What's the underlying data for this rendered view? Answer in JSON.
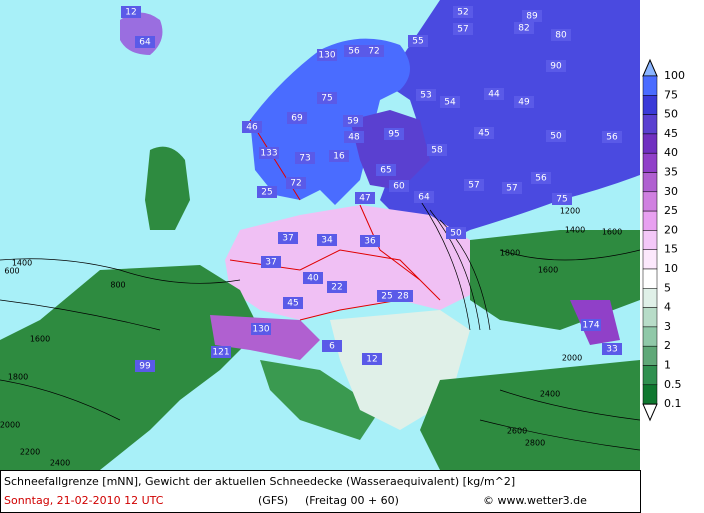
{
  "header": {
    "title": "Schneefallgrenze [mNN], Gewicht der aktuellen Schneedecke (Wasseraequivalent) [kg/m^2]",
    "date": "Sonntag, 21-02-2010  12 UTC",
    "model": "(GFS)",
    "run": "(Freitag 00 + 60)",
    "credit": "© www.wetter3.de"
  },
  "legend": {
    "levels": [
      100,
      75,
      50,
      45,
      40,
      35,
      30,
      25,
      20,
      15,
      10,
      5,
      4,
      3,
      2,
      1,
      0.5,
      0.1
    ],
    "colors": [
      "#8ab4ff",
      "#4a6cff",
      "#3a3ad8",
      "#5a40d0",
      "#7030c0",
      "#9040c8",
      "#b060d0",
      "#d080e0",
      "#e8a0f0",
      "#f4c8f8",
      "#fce8fc",
      "#ffffff",
      "#e0f0e8",
      "#b8dcc8",
      "#90c8a8",
      "#60a878",
      "#309050",
      "#107830",
      "#ffffff"
    ]
  },
  "map": {
    "snow_labels": [
      12,
      64,
      52,
      57,
      89,
      82,
      80,
      130,
      56,
      72,
      55,
      90,
      75,
      53,
      54,
      44,
      49,
      69,
      59,
      48,
      46,
      95,
      45,
      50,
      56,
      58,
      16,
      73,
      133,
      65,
      72,
      25,
      60,
      57,
      57,
      56,
      47,
      64,
      75,
      50,
      37,
      34,
      36,
      37,
      40,
      22,
      25,
      28,
      45,
      130,
      121,
      174,
      33,
      99,
      12,
      6
    ],
    "contour_labels": [
      1400,
      600,
      800,
      1600,
      1800,
      2000,
      2200,
      2400,
      1800,
      1600,
      2000,
      2400,
      2600,
      2800,
      1200,
      1400,
      1600
    ]
  }
}
